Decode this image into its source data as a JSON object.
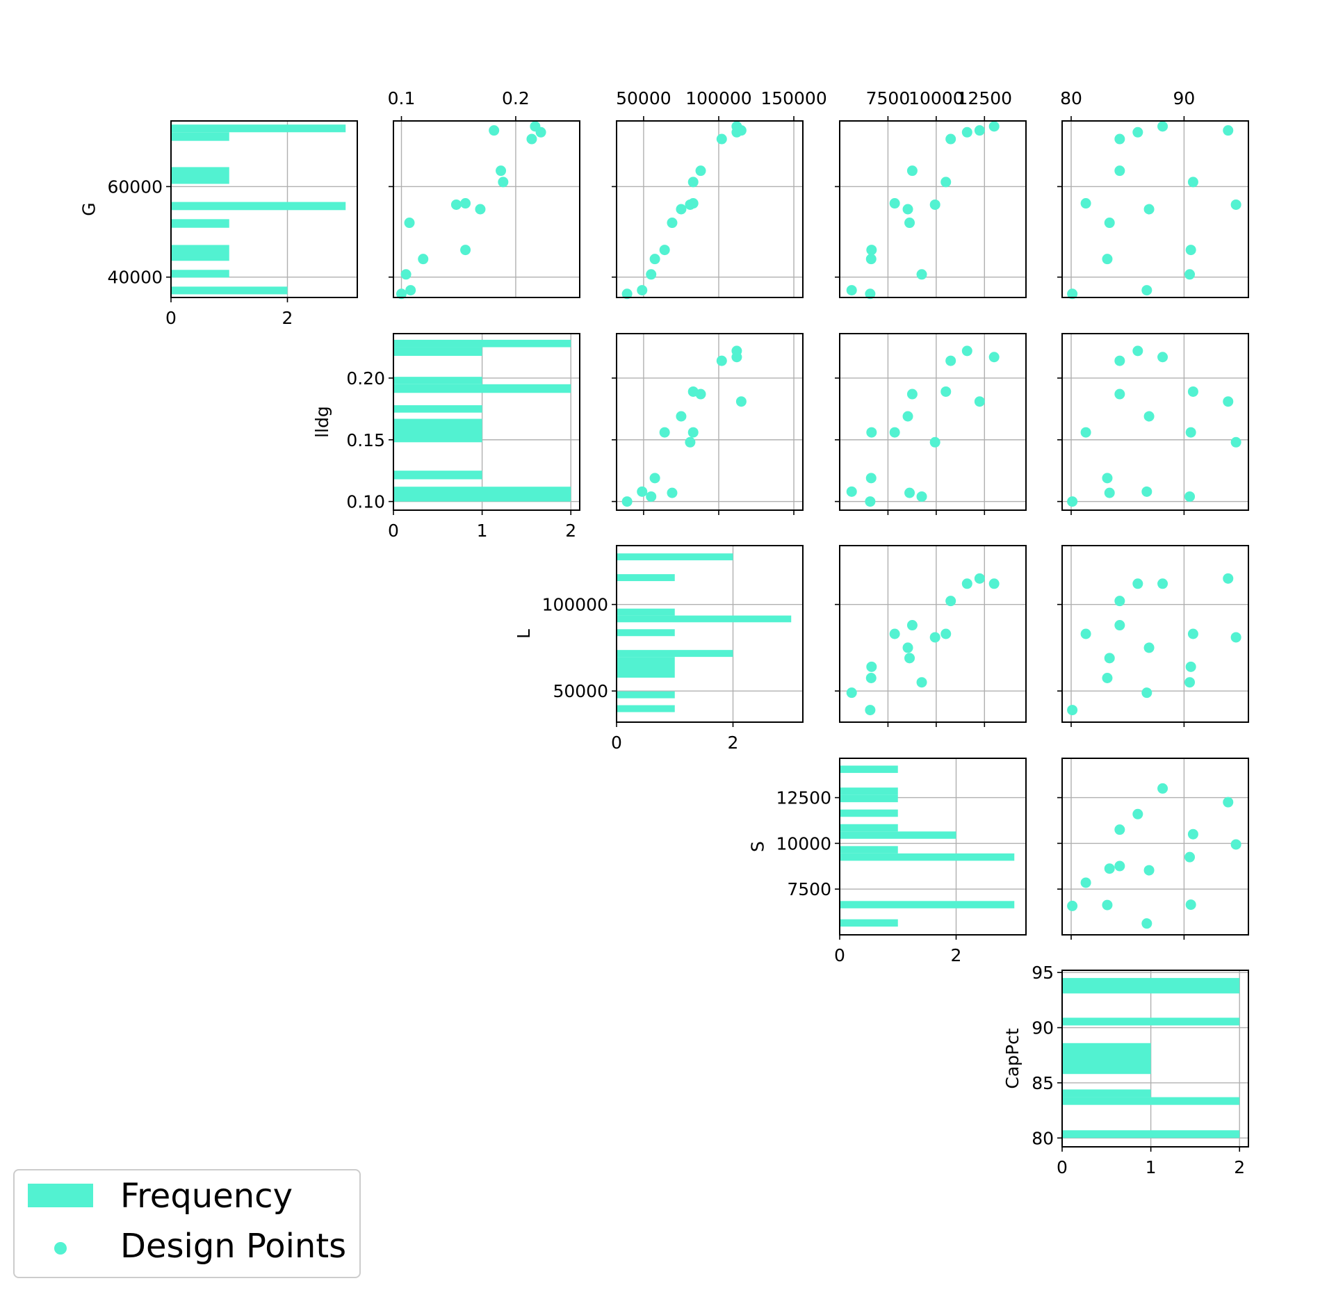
{
  "chart_data": {
    "type": "scatter",
    "variables": [
      {
        "label": "G",
        "ticks": [
          40000,
          60000
        ],
        "tick_labels": [
          "40000",
          "60000"
        ],
        "range": [
          35500,
          74500
        ]
      },
      {
        "label": "lldg",
        "ticks": [
          0.1,
          0.15,
          0.2
        ],
        "tick_labels": [
          "0.10",
          "0.15",
          "0.20"
        ],
        "range": [
          0.093,
          0.236
        ]
      },
      {
        "label": "L",
        "ticks": [
          50000,
          100000
        ],
        "tick_labels": [
          "50000",
          "100000"
        ],
        "range": [
          32000,
          134000
        ]
      },
      {
        "label": "S",
        "ticks": [
          7500,
          10000,
          12500
        ],
        "tick_labels": [
          "7500",
          "10000",
          "12500"
        ],
        "range": [
          5000,
          14650
        ]
      },
      {
        "label": "CapPct",
        "ticks": [
          80,
          85,
          90,
          95
        ],
        "tick_labels": [
          "80",
          "85",
          "90",
          "95"
        ],
        "range": [
          79.2,
          95.2
        ]
      }
    ],
    "top_tick_labels": [
      [
        "0.1",
        "0.2"
      ],
      [
        "50000",
        "100000",
        "150000"
      ],
      [
        "7500",
        "10000",
        "12500"
      ],
      [
        "80",
        "90"
      ]
    ],
    "top_tick_values": [
      [
        0.1,
        0.2
      ],
      [
        50000,
        100000,
        150000
      ],
      [
        7500,
        10000,
        12500
      ],
      [
        80,
        90
      ]
    ],
    "top_tick_ranges": [
      [
        0.093,
        0.256
      ],
      [
        32000,
        156000
      ],
      [
        5000,
        14650
      ],
      [
        79.2,
        95.7
      ]
    ],
    "hist_xlim": [
      [
        0,
        3.2
      ],
      [
        0,
        2.1
      ],
      [
        0,
        3.2
      ],
      [
        0,
        3.2
      ],
      [
        0,
        2.1
      ]
    ],
    "hist_xticks": [
      [
        0,
        2
      ],
      [
        0,
        1,
        2
      ],
      [
        0,
        2
      ],
      [
        0,
        2
      ],
      [
        0,
        1,
        2
      ]
    ],
    "histograms": [
      {
        "variable": "G",
        "bins": [
          {
            "lo": 36200,
            "hi": 37900,
            "count": 2
          },
          {
            "lo": 39900,
            "hi": 41600,
            "count": 1
          },
          {
            "lo": 43600,
            "hi": 47100,
            "count": 1
          },
          {
            "lo": 50900,
            "hi": 52800,
            "count": 1
          },
          {
            "lo": 54800,
            "hi": 56600,
            "count": 3
          },
          {
            "lo": 60600,
            "hi": 64300,
            "count": 1
          },
          {
            "lo": 70100,
            "hi": 72000,
            "count": 1
          },
          {
            "lo": 72000,
            "hi": 73700,
            "count": 3
          }
        ]
      },
      {
        "variable": "lldg",
        "bins": [
          {
            "lo": 0.1,
            "hi": 0.112,
            "count": 2
          },
          {
            "lo": 0.118,
            "hi": 0.125,
            "count": 1
          },
          {
            "lo": 0.148,
            "hi": 0.167,
            "count": 1
          },
          {
            "lo": 0.172,
            "hi": 0.178,
            "count": 1
          },
          {
            "lo": 0.188,
            "hi": 0.195,
            "count": 2
          },
          {
            "lo": 0.195,
            "hi": 0.201,
            "count": 1
          },
          {
            "lo": 0.218,
            "hi": 0.225,
            "count": 1
          },
          {
            "lo": 0.225,
            "hi": 0.231,
            "count": 2
          }
        ]
      },
      {
        "variable": "L",
        "bins": [
          {
            "lo": 37800,
            "hi": 41800,
            "count": 1
          },
          {
            "lo": 45800,
            "hi": 49800,
            "count": 1
          },
          {
            "lo": 57700,
            "hi": 69700,
            "count": 1
          },
          {
            "lo": 69700,
            "hi": 73700,
            "count": 2
          },
          {
            "lo": 81700,
            "hi": 85700,
            "count": 1
          },
          {
            "lo": 89700,
            "hi": 93600,
            "count": 3
          },
          {
            "lo": 93600,
            "hi": 97600,
            "count": 1
          },
          {
            "lo": 113500,
            "hi": 117500,
            "count": 1
          },
          {
            "lo": 125500,
            "hi": 129500,
            "count": 2
          }
        ]
      },
      {
        "variable": "S",
        "bins": [
          {
            "lo": 5450,
            "hi": 5850,
            "count": 1
          },
          {
            "lo": 6450,
            "hi": 6850,
            "count": 3
          },
          {
            "lo": 9050,
            "hi": 9450,
            "count": 3
          },
          {
            "lo": 9450,
            "hi": 9850,
            "count": 1
          },
          {
            "lo": 10250,
            "hi": 10650,
            "count": 2
          },
          {
            "lo": 10650,
            "hi": 11050,
            "count": 1
          },
          {
            "lo": 11450,
            "hi": 11850,
            "count": 1
          },
          {
            "lo": 12250,
            "hi": 12650,
            "count": 1
          },
          {
            "lo": 12650,
            "hi": 13050,
            "count": 1
          },
          {
            "lo": 13850,
            "hi": 14250,
            "count": 1
          }
        ]
      },
      {
        "variable": "CapPct",
        "bins": [
          {
            "lo": 80,
            "hi": 80.7,
            "count": 2
          },
          {
            "lo": 83,
            "hi": 83.7,
            "count": 2
          },
          {
            "lo": 83.7,
            "hi": 84.4,
            "count": 1
          },
          {
            "lo": 85.8,
            "hi": 88.6,
            "count": 1
          },
          {
            "lo": 90.2,
            "hi": 90.9,
            "count": 2
          },
          {
            "lo": 93.1,
            "hi": 94.5,
            "count": 2
          }
        ]
      }
    ],
    "points": [
      {
        "G": 36300,
        "lldg": 0.1,
        "L": 39000,
        "S": 6580,
        "CapPct": 80.1
      },
      {
        "G": 37100,
        "lldg": 0.108,
        "L": 49000,
        "S": 5620,
        "CapPct": 86.7
      },
      {
        "G": 40600,
        "lldg": 0.104,
        "L": 55000,
        "S": 9250,
        "CapPct": 90.5
      },
      {
        "G": 44000,
        "lldg": 0.119,
        "L": 57500,
        "S": 6630,
        "CapPct": 83.2
      },
      {
        "G": 46000,
        "lldg": 0.156,
        "L": 64000,
        "S": 6650,
        "CapPct": 90.6
      },
      {
        "G": 52000,
        "lldg": 0.107,
        "L": 69000,
        "S": 8620,
        "CapPct": 83.4
      },
      {
        "G": 55000,
        "lldg": 0.169,
        "L": 75000,
        "S": 8530,
        "CapPct": 86.9
      },
      {
        "G": 56000,
        "lldg": 0.148,
        "L": 81000,
        "S": 9940,
        "CapPct": 94.6
      },
      {
        "G": 56300,
        "lldg": 0.156,
        "L": 83000,
        "S": 7850,
        "CapPct": 81.3
      },
      {
        "G": 61000,
        "lldg": 0.189,
        "L": 83000,
        "S": 10500,
        "CapPct": 90.8
      },
      {
        "G": 63500,
        "lldg": 0.187,
        "L": 88000,
        "S": 8760,
        "CapPct": 84.3
      },
      {
        "G": 70500,
        "lldg": 0.214,
        "L": 102000,
        "S": 10750,
        "CapPct": 84.3
      },
      {
        "G": 72000,
        "lldg": 0.222,
        "L": 112000,
        "S": 11600,
        "CapPct": 85.9
      },
      {
        "G": 72400,
        "lldg": 0.181,
        "L": 115000,
        "S": 12250,
        "CapPct": 93.9
      },
      {
        "G": 73300,
        "lldg": 0.217,
        "L": 112000,
        "S": 13000,
        "CapPct": 88.1
      }
    ],
    "grid": true,
    "legend": {
      "placement": "bottom-left",
      "entries": [
        "Frequency",
        "Design Points"
      ]
    },
    "colors": {
      "marker": "#52F2D1",
      "bar": "#52F2D1",
      "grid": "#b0b0b0",
      "legend_border": "#cccccc"
    }
  }
}
